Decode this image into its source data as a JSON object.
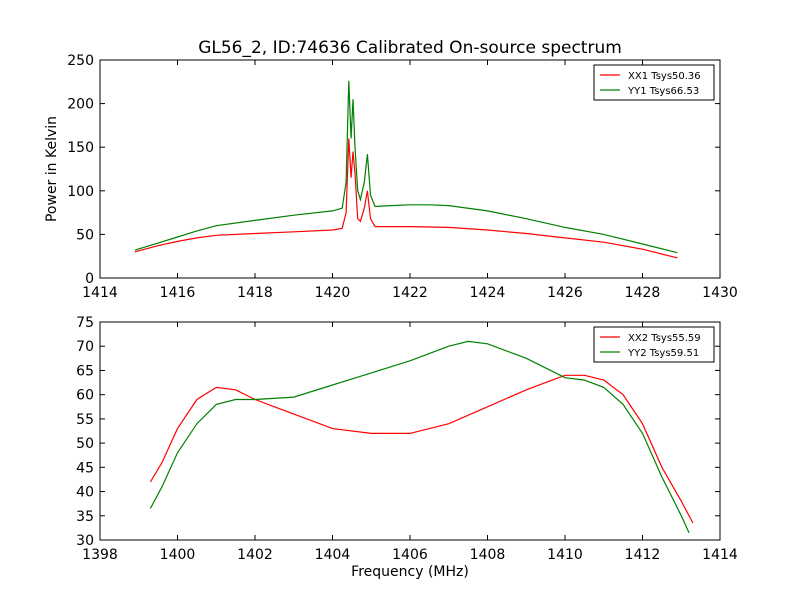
{
  "figure": {
    "title": "GL56_2, ID:74636 Calibrated On-source spectrum"
  },
  "chart_data": [
    {
      "type": "line",
      "title": "GL56_2, ID:74636 Calibrated On-source spectrum",
      "xlabel": "",
      "ylabel": "Power in Kelvin",
      "xlim": [
        1414,
        1430
      ],
      "ylim": [
        0,
        250
      ],
      "xticks": [
        1414,
        1416,
        1418,
        1420,
        1422,
        1424,
        1426,
        1428,
        1430
      ],
      "yticks": [
        0,
        50,
        100,
        150,
        200,
        250
      ],
      "grid": false,
      "legend_position": "top-right",
      "series": [
        {
          "name": "XX1 Tsys50.36",
          "color": "#ff0000",
          "x": [
            1414.9,
            1415.5,
            1416.0,
            1416.5,
            1417.0,
            1418.0,
            1419.0,
            1420.0,
            1420.25,
            1420.35,
            1420.42,
            1420.48,
            1420.53,
            1420.58,
            1420.65,
            1420.72,
            1420.82,
            1420.9,
            1420.98,
            1421.1,
            1421.5,
            1422.0,
            1423.0,
            1424.0,
            1425.0,
            1426.0,
            1427.0,
            1428.0,
            1428.9
          ],
          "y": [
            30,
            37,
            42,
            46,
            49,
            51,
            53,
            55,
            57,
            75,
            160,
            115,
            145,
            120,
            68,
            65,
            80,
            100,
            68,
            59,
            59,
            59,
            58,
            55,
            51,
            46,
            41,
            33,
            23
          ]
        },
        {
          "name": "YY1 Tsys66.53",
          "color": "#008000",
          "x": [
            1414.9,
            1415.5,
            1416.0,
            1416.5,
            1417.0,
            1418.0,
            1419.0,
            1420.0,
            1420.25,
            1420.35,
            1420.42,
            1420.48,
            1420.53,
            1420.58,
            1420.65,
            1420.72,
            1420.82,
            1420.9,
            1420.98,
            1421.1,
            1421.5,
            1422.0,
            1422.5,
            1423.0,
            1424.0,
            1425.0,
            1426.0,
            1427.0,
            1428.0,
            1428.9
          ],
          "y": [
            32,
            40,
            47,
            54,
            60,
            66,
            72,
            77,
            80,
            110,
            226,
            160,
            205,
            150,
            100,
            90,
            110,
            142,
            95,
            82,
            83,
            84,
            84,
            83,
            77,
            68,
            58,
            50,
            39,
            29
          ]
        }
      ]
    },
    {
      "type": "line",
      "title": "",
      "xlabel": "Frequency (MHz)",
      "ylabel": "",
      "xlim": [
        1398,
        1414
      ],
      "ylim": [
        30,
        75
      ],
      "xticks": [
        1398,
        1400,
        1402,
        1404,
        1406,
        1408,
        1410,
        1412,
        1414
      ],
      "yticks": [
        30,
        35,
        40,
        45,
        50,
        55,
        60,
        65,
        70,
        75
      ],
      "grid": false,
      "legend_position": "top-right",
      "series": [
        {
          "name": "XX2 Tsys55.59",
          "color": "#ff0000",
          "x": [
            1399.3,
            1399.6,
            1400.0,
            1400.5,
            1401.0,
            1401.5,
            1402.0,
            1402.5,
            1403.0,
            1404.0,
            1405.0,
            1406.0,
            1407.0,
            1408.0,
            1409.0,
            1410.0,
            1410.5,
            1411.0,
            1411.5,
            1412.0,
            1412.5,
            1413.0,
            1413.3
          ],
          "y": [
            42,
            46,
            53,
            59,
            61.5,
            61,
            59,
            57.5,
            56,
            53,
            52,
            52,
            54,
            57.5,
            61,
            64,
            64,
            63,
            60,
            54,
            45,
            38,
            33.5
          ]
        },
        {
          "name": "YY2 Tsys59.51",
          "color": "#008000",
          "x": [
            1399.3,
            1399.6,
            1400.0,
            1400.5,
            1401.0,
            1401.5,
            1402.0,
            1403.0,
            1404.0,
            1405.0,
            1406.0,
            1407.0,
            1407.5,
            1408.0,
            1409.0,
            1410.0,
            1410.5,
            1411.0,
            1411.5,
            1412.0,
            1412.5,
            1413.0,
            1413.2
          ],
          "y": [
            36.5,
            41,
            48,
            54,
            58,
            59,
            59,
            59.5,
            62,
            64.5,
            67,
            70,
            71,
            70.5,
            67.5,
            63.5,
            63,
            61.5,
            58,
            52,
            43,
            35,
            31.5
          ]
        }
      ]
    }
  ]
}
